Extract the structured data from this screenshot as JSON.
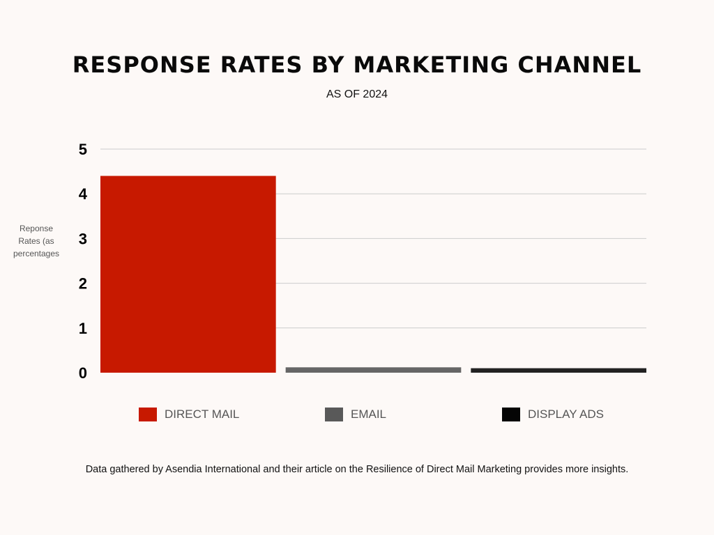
{
  "chart_data": {
    "type": "bar",
    "title": "RESPONSE RATES BY MARKETING CHANNEL",
    "subtitle": "AS OF 2024",
    "ylabel": "Reponse Rates (as percentages",
    "xlabel": "",
    "categories": [
      "DIRECT MAIL",
      "EMAIL",
      "DISPLAY ADS"
    ],
    "values": [
      4.4,
      0.12,
      0.1
    ],
    "colors": [
      "#c71900",
      "#666666",
      "#222222"
    ],
    "ylim": [
      0,
      5
    ],
    "yticks": [
      "0",
      "1",
      "2",
      "3",
      "4",
      "5"
    ],
    "grid": true,
    "legend_position": "bottom"
  },
  "legend": {
    "swatch_colors": [
      "#c71900",
      "#595959",
      "#050505"
    ]
  },
  "footnote": "Data gathered by Asendia International and their article on the Resilience of Direct Mail Marketing provides more insights."
}
